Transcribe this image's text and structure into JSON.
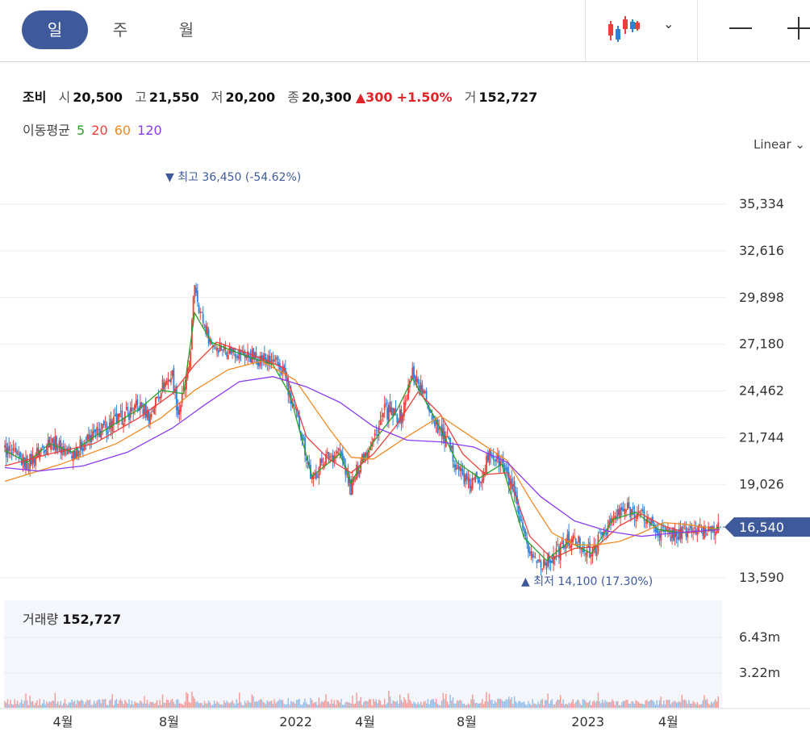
{
  "toolbar": {
    "periods": [
      {
        "label": "일",
        "active": true
      },
      {
        "label": "주",
        "active": false
      },
      {
        "label": "월",
        "active": false
      }
    ],
    "chart_type_icon": "candlestick-icon",
    "dropdown_icon": "chevron-down-icon",
    "zoom_out_icon": "minus-icon",
    "zoom_in_icon": "plus-icon",
    "caret": "⌄"
  },
  "quote": {
    "name": "조비",
    "open_label": "시",
    "open": "20,500",
    "high_label": "고",
    "high": "21,550",
    "low_label": "저",
    "low": "20,200",
    "close_label": "종",
    "close": "20,300",
    "change": "▲300",
    "change_pct": "+1.50%",
    "volume_label": "거",
    "volume": "152,727"
  },
  "moving_average": {
    "label": "이동평균",
    "periods": [
      {
        "label": "5",
        "color": "#2aa02a"
      },
      {
        "label": "20",
        "color": "#e8413b"
      },
      {
        "label": "60",
        "color": "#f08a24"
      },
      {
        "label": "120",
        "color": "#8a3cf0"
      }
    ]
  },
  "scale_mode": "Linear",
  "colors": {
    "up": "#e8413b",
    "down": "#2f80d8",
    "accent": "#3e5a9a",
    "marker": "#3e5a9a"
  },
  "chart_data": {
    "type": "candlestick",
    "y_ticks": [
      "35,334",
      "32,616",
      "29,898",
      "27,180",
      "24,462",
      "21,744",
      "19,026",
      "13,590"
    ],
    "ylim": [
      13590,
      35334
    ],
    "x_ticks": [
      "4월",
      "8월",
      "2022",
      "4월",
      "8월",
      "2023",
      "4월"
    ],
    "current_price": "16,540",
    "high_marker": {
      "arrow": "▼",
      "label": "최고",
      "value": "36,450 (-54.62%)"
    },
    "low_marker": {
      "arrow": "▲",
      "label": "최저",
      "value": "14,100 (17.30%)"
    },
    "price_path": [
      [
        0,
        21000
      ],
      [
        4,
        20200
      ],
      [
        8,
        21600
      ],
      [
        12,
        20800
      ],
      [
        16,
        21900
      ],
      [
        20,
        22700
      ],
      [
        24,
        23600
      ],
      [
        26,
        23000
      ],
      [
        28,
        24700
      ],
      [
        30,
        25400
      ],
      [
        31,
        23200
      ],
      [
        32,
        24300
      ],
      [
        33,
        25800
      ],
      [
        34,
        30800
      ],
      [
        35,
        29000
      ],
      [
        37,
        27200
      ],
      [
        40,
        26900
      ],
      [
        44,
        26500
      ],
      [
        48,
        26100
      ],
      [
        50,
        25600
      ],
      [
        51,
        24100
      ],
      [
        53,
        22200
      ],
      [
        55,
        19200
      ],
      [
        57,
        20500
      ],
      [
        60,
        20900
      ],
      [
        62,
        18800
      ],
      [
        64,
        20700
      ],
      [
        66,
        21600
      ],
      [
        68,
        23300
      ],
      [
        71,
        22900
      ],
      [
        73,
        25600
      ],
      [
        75,
        24300
      ],
      [
        77,
        22700
      ],
      [
        79,
        21600
      ],
      [
        81,
        20100
      ],
      [
        83,
        19000
      ],
      [
        85,
        19400
      ],
      [
        87,
        20800
      ],
      [
        89,
        20200
      ],
      [
        91,
        18600
      ],
      [
        93,
        15800
      ],
      [
        95,
        14600
      ],
      [
        97,
        14500
      ],
      [
        99,
        15100
      ],
      [
        101,
        15800
      ],
      [
        103,
        15600
      ],
      [
        105,
        14900
      ],
      [
        107,
        16200
      ],
      [
        109,
        17000
      ],
      [
        111,
        17600
      ],
      [
        113,
        17400
      ],
      [
        115,
        17000
      ],
      [
        117,
        16300
      ],
      [
        119,
        16100
      ],
      [
        121,
        16200
      ],
      [
        123,
        16400
      ],
      [
        125,
        16300
      ],
      [
        127,
        16600
      ],
      [
        128,
        16540
      ]
    ],
    "ma_series": [
      {
        "name": "5",
        "color": "#2aa02a",
        "values": [
          [
            0,
            21000
          ],
          [
            4,
            20300
          ],
          [
            8,
            21400
          ],
          [
            12,
            20900
          ],
          [
            16,
            21800
          ],
          [
            20,
            22600
          ],
          [
            24,
            23400
          ],
          [
            28,
            24500
          ],
          [
            32,
            24300
          ],
          [
            34,
            29000
          ],
          [
            37,
            27300
          ],
          [
            40,
            26900
          ],
          [
            44,
            26400
          ],
          [
            48,
            26000
          ],
          [
            51,
            24300
          ],
          [
            55,
            19500
          ],
          [
            60,
            20800
          ],
          [
            62,
            19100
          ],
          [
            66,
            21500
          ],
          [
            70,
            23200
          ],
          [
            73,
            25200
          ],
          [
            77,
            22900
          ],
          [
            81,
            20300
          ],
          [
            85,
            19400
          ],
          [
            89,
            20200
          ],
          [
            93,
            15900
          ],
          [
            97,
            14600
          ],
          [
            101,
            15700
          ],
          [
            105,
            15000
          ],
          [
            109,
            17000
          ],
          [
            113,
            17400
          ],
          [
            117,
            16400
          ],
          [
            121,
            16200
          ],
          [
            125,
            16300
          ],
          [
            128,
            16500
          ]
        ]
      },
      {
        "name": "20",
        "color": "#e8413b",
        "values": [
          [
            0,
            20100
          ],
          [
            8,
            20800
          ],
          [
            16,
            21400
          ],
          [
            24,
            22900
          ],
          [
            30,
            24300
          ],
          [
            34,
            26000
          ],
          [
            38,
            27300
          ],
          [
            44,
            26600
          ],
          [
            50,
            25800
          ],
          [
            54,
            21800
          ],
          [
            58,
            20500
          ],
          [
            62,
            19700
          ],
          [
            66,
            20800
          ],
          [
            70,
            22400
          ],
          [
            74,
            24400
          ],
          [
            78,
            23100
          ],
          [
            82,
            20800
          ],
          [
            86,
            19600
          ],
          [
            90,
            19700
          ],
          [
            94,
            16000
          ],
          [
            98,
            14700
          ],
          [
            102,
            15300
          ],
          [
            106,
            15400
          ],
          [
            110,
            16600
          ],
          [
            114,
            17300
          ],
          [
            118,
            16600
          ],
          [
            122,
            16200
          ],
          [
            128,
            16400
          ]
        ]
      },
      {
        "name": "60",
        "color": "#f08a24",
        "values": [
          [
            0,
            19200
          ],
          [
            10,
            20200
          ],
          [
            20,
            21400
          ],
          [
            28,
            22900
          ],
          [
            34,
            24500
          ],
          [
            40,
            25700
          ],
          [
            46,
            26200
          ],
          [
            52,
            25100
          ],
          [
            58,
            22300
          ],
          [
            62,
            20600
          ],
          [
            66,
            20500
          ],
          [
            72,
            21800
          ],
          [
            78,
            23000
          ],
          [
            84,
            21700
          ],
          [
            90,
            20400
          ],
          [
            94,
            18200
          ],
          [
            98,
            16200
          ],
          [
            102,
            15500
          ],
          [
            106,
            15500
          ],
          [
            110,
            15700
          ],
          [
            114,
            16200
          ],
          [
            118,
            16800
          ],
          [
            122,
            16700
          ],
          [
            128,
            16400
          ]
        ]
      },
      {
        "name": "120",
        "color": "#8a3cf0",
        "values": [
          [
            0,
            20000
          ],
          [
            6,
            19800
          ],
          [
            14,
            20100
          ],
          [
            22,
            20900
          ],
          [
            30,
            22300
          ],
          [
            36,
            23700
          ],
          [
            42,
            25000
          ],
          [
            48,
            25300
          ],
          [
            54,
            24700
          ],
          [
            60,
            23800
          ],
          [
            66,
            22400
          ],
          [
            72,
            21600
          ],
          [
            78,
            21500
          ],
          [
            84,
            21200
          ],
          [
            90,
            20300
          ],
          [
            96,
            18300
          ],
          [
            102,
            16900
          ],
          [
            108,
            16300
          ],
          [
            114,
            16000
          ],
          [
            120,
            16200
          ],
          [
            128,
            16400
          ]
        ]
      }
    ],
    "volume": {
      "label": "거래량",
      "value": "152,727",
      "y_ticks": [
        "6.43m",
        "3.22m"
      ]
    }
  }
}
